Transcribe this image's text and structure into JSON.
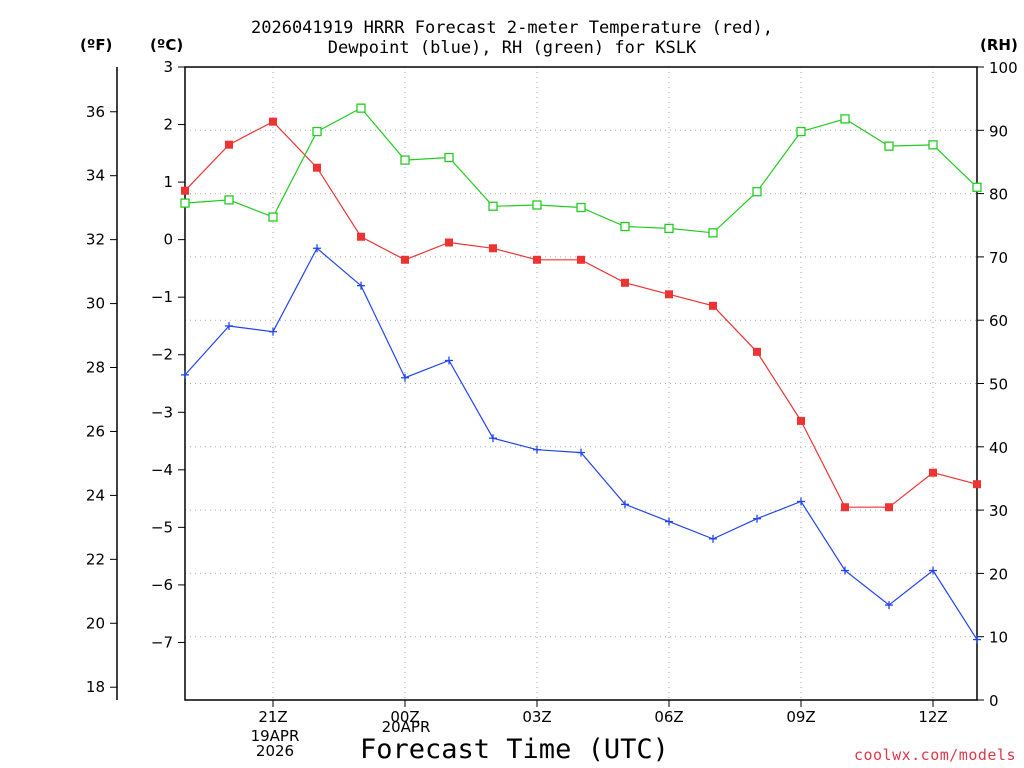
{
  "chart_data": {
    "type": "line",
    "title_line1": "2026041919 HRRR Forecast 2-meter Temperature (red),",
    "title_line2": "Dewpoint (blue), RH (green) for KSLK",
    "unit_left_outer": "(ºF)",
    "unit_left_inner": "(ºC)",
    "unit_right": "(RH)",
    "xlabel": "Forecast Time (UTC)",
    "credit": "coolwx.com/models",
    "date_labels": [
      {
        "lines": [
          "19APR",
          "2026"
        ]
      },
      {
        "lines": [
          "20APR"
        ]
      }
    ],
    "hours": [
      19,
      20,
      21,
      22,
      23,
      24,
      25,
      26,
      27,
      28,
      29,
      30,
      31,
      32,
      33,
      34,
      35,
      36,
      37
    ],
    "x_ticks": [
      {
        "hour": 21,
        "label": "21Z"
      },
      {
        "hour": 24,
        "label": "00Z"
      },
      {
        "hour": 27,
        "label": "03Z"
      },
      {
        "hour": 30,
        "label": "06Z"
      },
      {
        "hour": 33,
        "label": "09Z"
      },
      {
        "hour": 36,
        "label": "12Z"
      }
    ],
    "xlim": [
      19,
      37
    ],
    "ylim_c": [
      -8.0,
      3.0
    ],
    "y_ticks_c": [
      3,
      2,
      1,
      0,
      -1,
      -2,
      -3,
      -4,
      -5,
      -6,
      -7
    ],
    "y_tick_labels_c": [
      "3",
      "2",
      "1",
      "0",
      "−1",
      "−2",
      "−3",
      "−4",
      "−5",
      "−6",
      "−7"
    ],
    "y_ticks_f": [
      36,
      34,
      32,
      30,
      28,
      26,
      24,
      22,
      20,
      18
    ],
    "y_ticks_rh": [
      100,
      90,
      80,
      70,
      60,
      50,
      40,
      30,
      20,
      10,
      0
    ],
    "ylim_rh": [
      0,
      100
    ],
    "series": [
      {
        "name": "Temperature",
        "unit": "C",
        "color": "#ee3333",
        "marker": "filled-square",
        "values": [
          0.85,
          1.65,
          2.05,
          1.25,
          0.05,
          -0.35,
          -0.05,
          -0.15,
          -0.35,
          -0.35,
          -0.75,
          -0.95,
          -1.15,
          -1.95,
          -3.15,
          -4.65,
          -4.65,
          -4.05,
          -4.25
        ]
      },
      {
        "name": "Dewpoint",
        "unit": "C",
        "color": "#2244ee",
        "marker": "plus",
        "values": [
          -2.35,
          -1.5,
          -1.6,
          -0.15,
          -0.8,
          -2.4,
          -2.1,
          -3.45,
          -3.65,
          -3.7,
          -4.6,
          -4.9,
          -5.2,
          -4.85,
          -4.55,
          -5.75,
          -6.35,
          -5.75,
          -6.95
        ]
      },
      {
        "name": "RH",
        "unit": "%",
        "color": "#22cc22",
        "marker": "open-square",
        "values": [
          78.5,
          79,
          76.3,
          89.8,
          93.5,
          85.3,
          85.7,
          78,
          78.2,
          77.8,
          74.8,
          74.5,
          73.8,
          80.3,
          89.8,
          91.8,
          87.5,
          87.7,
          81
        ]
      }
    ]
  }
}
